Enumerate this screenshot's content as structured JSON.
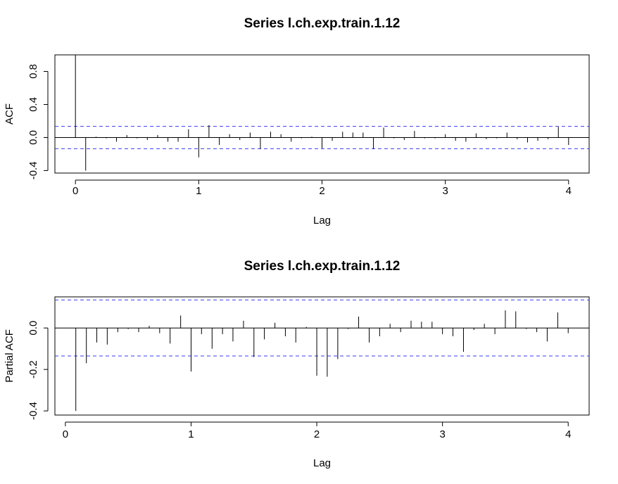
{
  "chart_data": [
    {
      "type": "bar",
      "title": "Series  l.ch.exp.train.1.12",
      "xlabel": "Lag",
      "ylabel": "ACF",
      "xlim": [
        -0.1666667,
        4.1666667
      ],
      "ylim": [
        -0.43,
        1.0
      ],
      "xticks": [
        "0",
        "1",
        "2",
        "3",
        "4"
      ],
      "yticks": [
        "-0.4",
        "0.0",
        "0.4",
        "0.8"
      ],
      "ci": 0.135,
      "zero_line": true,
      "grid": false,
      "lags": [
        0,
        0.083,
        0.167,
        0.25,
        0.333,
        0.417,
        0.5,
        0.583,
        0.667,
        0.75,
        0.833,
        0.917,
        1.0,
        1.083,
        1.167,
        1.25,
        1.333,
        1.417,
        1.5,
        1.583,
        1.667,
        1.75,
        1.833,
        1.917,
        2.0,
        2.083,
        2.167,
        2.25,
        2.333,
        2.417,
        2.5,
        2.583,
        2.667,
        2.75,
        2.833,
        2.917,
        3.0,
        3.083,
        3.167,
        3.25,
        3.333,
        3.417,
        3.5,
        3.583,
        3.667,
        3.75,
        3.833,
        3.917,
        4.0
      ],
      "values": [
        1.0,
        -0.4,
        0.01,
        -0.01,
        -0.05,
        0.03,
        -0.01,
        -0.03,
        0.03,
        -0.05,
        -0.05,
        0.1,
        -0.24,
        0.15,
        -0.09,
        0.04,
        -0.03,
        0.06,
        -0.14,
        0.07,
        0.04,
        -0.05,
        -0.01,
        0.01,
        -0.13,
        -0.04,
        0.07,
        0.06,
        0.06,
        -0.14,
        0.12,
        -0.01,
        -0.03,
        0.08,
        -0.01,
        -0.01,
        0.04,
        -0.04,
        -0.05,
        0.05,
        -0.02,
        -0.01,
        0.06,
        -0.02,
        -0.06,
        -0.04,
        -0.02,
        0.13,
        -0.09
      ]
    },
    {
      "type": "bar",
      "title": "Series  l.ch.exp.train.1.12",
      "xlabel": "Lag",
      "ylabel": "Partial ACF",
      "xlim": [
        -0.0833333,
        4.1666667
      ],
      "ylim": [
        -0.42,
        0.15
      ],
      "xticks": [
        "0",
        "1",
        "2",
        "3",
        "4"
      ],
      "yticks": [
        "-0.4",
        "-0.2",
        "0.0"
      ],
      "ci": 0.135,
      "zero_line": true,
      "grid": false,
      "lags": [
        0.083,
        0.167,
        0.25,
        0.333,
        0.417,
        0.5,
        0.583,
        0.667,
        0.75,
        0.833,
        0.917,
        1.0,
        1.083,
        1.167,
        1.25,
        1.333,
        1.417,
        1.5,
        1.583,
        1.667,
        1.75,
        1.833,
        1.917,
        2.0,
        2.083,
        2.167,
        2.25,
        2.333,
        2.417,
        2.5,
        2.583,
        2.667,
        2.75,
        2.833,
        2.917,
        3.0,
        3.083,
        3.167,
        3.25,
        3.333,
        3.417,
        3.5,
        3.583,
        3.667,
        3.75,
        3.833,
        3.917,
        4.0
      ],
      "values": [
        -0.4,
        -0.17,
        -0.07,
        -0.08,
        -0.02,
        -0.005,
        -0.02,
        0.01,
        -0.025,
        -0.075,
        0.06,
        -0.21,
        -0.03,
        -0.1,
        -0.03,
        -0.065,
        0.035,
        -0.14,
        -0.055,
        0.025,
        -0.04,
        -0.07,
        0.005,
        -0.23,
        -0.235,
        -0.15,
        -0.005,
        0.055,
        -0.07,
        -0.04,
        0.02,
        -0.02,
        0.035,
        0.03,
        0.03,
        -0.03,
        -0.04,
        -0.115,
        -0.01,
        0.02,
        -0.03,
        0.085,
        0.08,
        -0.005,
        -0.02,
        -0.065,
        0.075,
        -0.025
      ]
    }
  ]
}
